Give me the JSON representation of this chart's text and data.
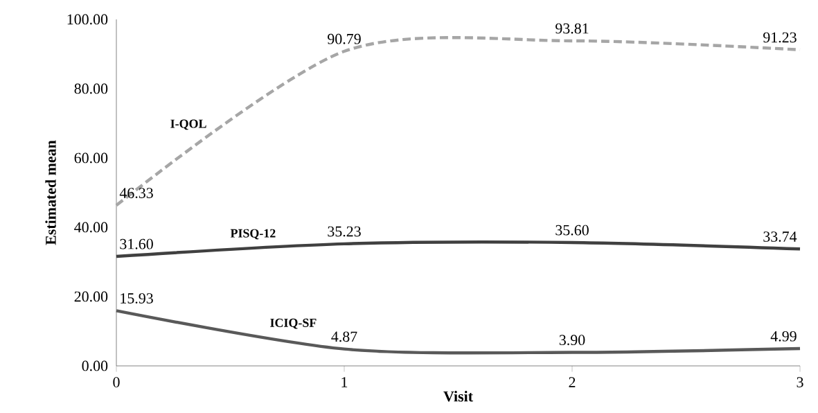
{
  "chart_data": {
    "type": "line",
    "xlabel": "Visit",
    "ylabel": "Estimated mean",
    "x": [
      0,
      1,
      2,
      3
    ],
    "series": [
      {
        "name": "I-QOL",
        "color": "#a6a6a6",
        "line_style": "dashed",
        "values": [
          46.33,
          90.79,
          93.81,
          91.23
        ],
        "value_labels": [
          "46.33",
          "90.79",
          "93.81",
          "91.23"
        ]
      },
      {
        "name": "PISQ-12",
        "color": "#404040",
        "line_style": "solid",
        "values": [
          31.6,
          35.23,
          35.6,
          33.74
        ],
        "value_labels": [
          "31.60",
          "35.23",
          "35.60",
          "33.74"
        ]
      },
      {
        "name": "ICIQ-SF",
        "color": "#595959",
        "line_style": "solid",
        "values": [
          15.93,
          4.87,
          3.9,
          4.99
        ],
        "value_labels": [
          "15.93",
          "4.87",
          "3.90",
          "4.99"
        ]
      }
    ],
    "xlim": [
      0,
      3
    ],
    "xticks": [
      0,
      1,
      2,
      3
    ],
    "ylim": [
      0,
      100
    ],
    "yticks": [
      {
        "value": 0,
        "label": "0.00"
      },
      {
        "value": 20,
        "label": "20.00"
      },
      {
        "value": 40,
        "label": "40.00"
      },
      {
        "value": 60,
        "label": "60.00"
      },
      {
        "value": 80,
        "label": "80.00"
      },
      {
        "value": 100,
        "label": "100.00"
      }
    ],
    "grid": false,
    "marker": "none"
  }
}
